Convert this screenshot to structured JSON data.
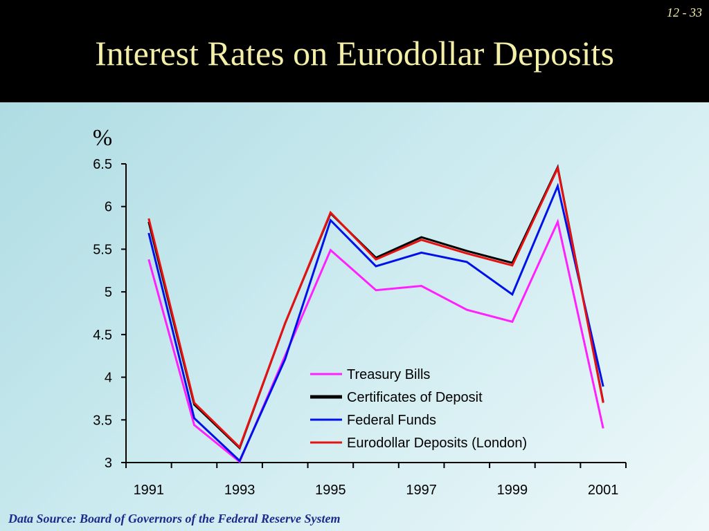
{
  "slide": {
    "page_number": "12 - 33",
    "title": "Interest Rates on Eurodollar Deposits",
    "source": "Data Source: Board of Governors of the Federal Reserve System"
  },
  "chart_data": {
    "type": "line",
    "title": "Interest Rates on Eurodollar Deposits",
    "ylabel": "%",
    "xlabel": "",
    "x": [
      1991,
      1992,
      1993,
      1994,
      1995,
      1996,
      1997,
      1998,
      1999,
      2000,
      2001
    ],
    "x_tick_labels": [
      "1991",
      "1993",
      "1995",
      "1997",
      "1999",
      "2001"
    ],
    "y_tick_labels": [
      "3",
      "3.5",
      "4",
      "4.5",
      "5",
      "5.5",
      "6",
      "6.5"
    ],
    "xlim": [
      1990.5,
      2001.5
    ],
    "ylim": [
      3,
      6.5
    ],
    "grid": false,
    "legend_position": "lower-right",
    "series": [
      {
        "name": "Treasury Bills",
        "color": "#ff20ff",
        "values": [
          5.38,
          3.44,
          3.01,
          4.25,
          5.49,
          5.02,
          5.07,
          4.79,
          4.65,
          5.82,
          3.4
        ]
      },
      {
        "name": "Certificates of Deposit",
        "color": "#000000",
        "values": [
          5.82,
          3.68,
          3.17,
          4.63,
          5.92,
          5.4,
          5.64,
          5.48,
          5.34,
          6.46,
          3.71
        ]
      },
      {
        "name": "Federal Funds",
        "color": "#0010e8",
        "values": [
          5.69,
          3.52,
          3.02,
          4.21,
          5.84,
          5.3,
          5.46,
          5.35,
          4.97,
          6.24,
          3.89
        ]
      },
      {
        "name": "Eurodollar Deposits (London)",
        "color": "#e81010",
        "values": [
          5.86,
          3.7,
          3.18,
          4.63,
          5.93,
          5.38,
          5.61,
          5.45,
          5.31,
          6.45,
          3.7
        ]
      }
    ]
  }
}
